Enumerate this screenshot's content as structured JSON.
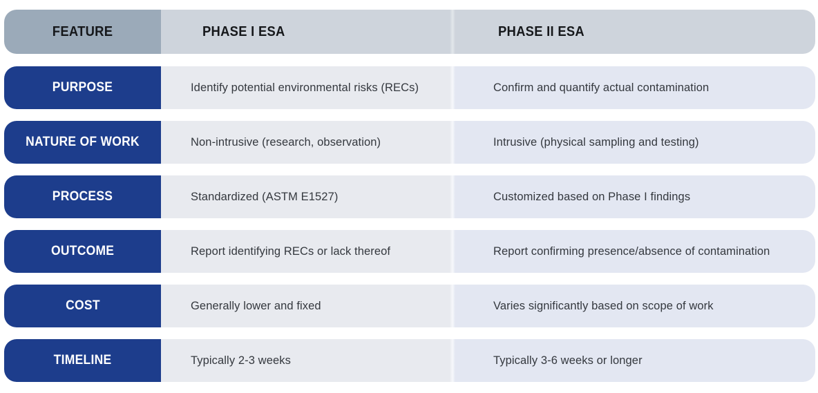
{
  "table": {
    "header": {
      "feature": "FEATURE",
      "phase1": "PHASE I ESA",
      "phase2": "PHASE II ESA"
    },
    "rows": [
      {
        "feature": "PURPOSE",
        "phase1": "Identify potential environmental risks (RECs)",
        "phase2": "Confirm and quantify actual contamination"
      },
      {
        "feature": "NATURE OF WORK",
        "phase1": "Non-intrusive (research, observation)",
        "phase2": "Intrusive (physical sampling and testing)"
      },
      {
        "feature": "PROCESS",
        "phase1": "Standardized (ASTM E1527)",
        "phase2": "Customized based on Phase I findings"
      },
      {
        "feature": "OUTCOME",
        "phase1": "Report identifying RECs or lack thereof",
        "phase2": "Report confirming presence/absence of contamination"
      },
      {
        "feature": "COST",
        "phase1": "Generally lower and fixed",
        "phase2": "Varies significantly based on scope of work"
      },
      {
        "feature": "TIMELINE",
        "phase1": "Typically 2-3 weeks",
        "phase2": "Typically 3-6 weeks or longer"
      }
    ]
  },
  "colors": {
    "feature_header_bg": "#9BAAB9",
    "phase_header_bg": "#CED4DC",
    "label_bg": "#1D3D8C",
    "phase1_cell_bg": "#E8EAEF",
    "phase2_cell_bg": "#E3E7F2",
    "header_text": "#16181B",
    "body_text": "#34383E",
    "label_text": "#FFFFFF"
  }
}
